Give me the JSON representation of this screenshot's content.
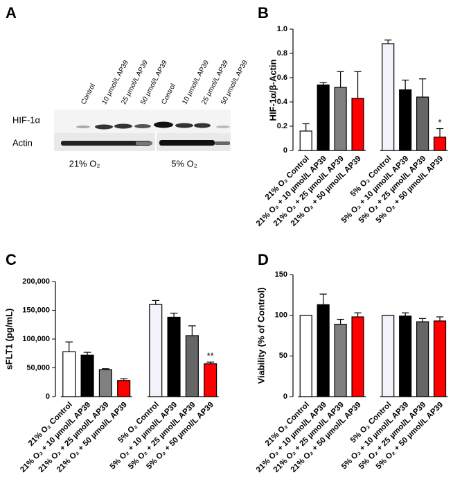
{
  "blot": {
    "panel_label": "A",
    "lanes": [
      "Control",
      "10 µmol/L AP39",
      "25 µmol/L AP39",
      "50 µmol/L AP39",
      "Control",
      "10 µmol/L AP39",
      "25 µmol/L AP39",
      "50 µmol/L AP39"
    ],
    "rows": [
      "HIF-1α",
      "Actin"
    ],
    "groups": [
      "21% O₂",
      "5% O₂"
    ]
  },
  "chart_data": [
    {
      "type": "bar",
      "panel_label": "B",
      "ylabel": "HIF-1α/β-Actin",
      "categories": [
        "21% O₂ Control",
        "21% O₂ + 10 µmol/L AP39",
        "21% O₂ + 25 µmol/L AP39",
        "21% O₂ + 50 µmol/L AP39",
        "5% O₂ Control",
        "5% O₂ + 10 µmol/L AP39",
        "5% O₂ + 25 µmol/L AP39",
        "5% O₂ + 50 µmol/L AP39"
      ],
      "colors": [
        "#ffffff",
        "#000000",
        "#808080",
        "#ff0000",
        "#f3f1fa",
        "#000000",
        "#666666",
        "#ff0000"
      ],
      "values": [
        0.16,
        0.54,
        0.52,
        0.43,
        0.88,
        0.5,
        0.44,
        0.11
      ],
      "errors": [
        0.06,
        0.02,
        0.13,
        0.22,
        0.03,
        0.08,
        0.15,
        0.07
      ],
      "bar_annotations": [
        null,
        null,
        null,
        null,
        null,
        null,
        null,
        "*"
      ],
      "ylim": [
        0,
        1.0
      ],
      "yticks": [
        0,
        0.2,
        0.4,
        0.6,
        0.8,
        {
          "value": 1.0,
          "label": "1.0"
        }
      ]
    },
    {
      "type": "bar",
      "panel_label": "C",
      "ylabel": "sFLT1 (pg/mL)",
      "categories": [
        "21% O₂ Control",
        "21% O₂ + 10 µmol/L AP39",
        "21% O₂ + 25 µmol/L AP39",
        "21% O₂ + 50 µmol/L AP39",
        "5% O₂ Control",
        "5% O₂ + 10 µmol/L AP39",
        "5% O₂ + 25 µmol/L AP39",
        "5% O₂ + 50 µmol/L AP39"
      ],
      "colors": [
        "#ffffff",
        "#000000",
        "#808080",
        "#ff0000",
        "#f3f1fa",
        "#000000",
        "#666666",
        "#ff0000"
      ],
      "values": [
        78000,
        72000,
        47000,
        28000,
        160000,
        138000,
        106000,
        57000
      ],
      "errors": [
        17000,
        5000,
        1500,
        3000,
        7000,
        7000,
        17000,
        3000
      ],
      "bar_annotations": [
        null,
        null,
        null,
        null,
        null,
        null,
        null,
        "**"
      ],
      "ylim": [
        0,
        200000
      ],
      "yticks": [
        0,
        {
          "value": 50000,
          "label": "50,000"
        },
        {
          "value": 100000,
          "label": "100,000"
        },
        {
          "value": 150000,
          "label": "150,000"
        },
        {
          "value": 200000,
          "label": "200,000"
        }
      ]
    },
    {
      "type": "bar",
      "panel_label": "D",
      "ylabel": "Viability (% of Control)",
      "categories": [
        "21% O₂ Control",
        "21% O₂ + 10 µmol/L AP39",
        "21% O₂ + 25 µmol/L AP39",
        "21% O₂ + 50 µmol/L AP39",
        "5% O₂ Control",
        "5% O₂ + 10 µmol/L AP39",
        "5% O₂ + 25 µmol/L AP39",
        "5% O₂ + 50 µmol/L AP39"
      ],
      "colors": [
        "#ffffff",
        "#000000",
        "#808080",
        "#ff0000",
        "#f3f1fa",
        "#000000",
        "#666666",
        "#ff0000"
      ],
      "values": [
        100,
        113,
        89,
        98,
        100,
        99,
        92,
        93
      ],
      "errors": [
        0,
        13,
        6,
        5,
        0,
        4,
        4,
        5
      ],
      "bar_annotations": [
        null,
        null,
        null,
        null,
        null,
        null,
        null,
        null
      ],
      "ylim": [
        0,
        150
      ],
      "yticks": [
        0,
        50,
        100,
        150
      ]
    }
  ]
}
